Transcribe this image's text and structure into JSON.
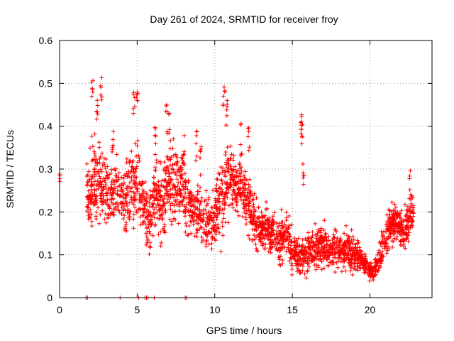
{
  "chart_data": {
    "type": "scatter",
    "title": "Day 261 of 2024, SRMTID for receiver froy",
    "xlabel": "GPS time / hours",
    "ylabel": "SRMTID / TECUs",
    "xlim": [
      0,
      24
    ],
    "ylim": [
      0,
      0.6
    ],
    "xticks": [
      0,
      5,
      10,
      15,
      20
    ],
    "xtick_labels": [
      "0",
      "5",
      "10",
      "15",
      "20"
    ],
    "yticks": [
      0,
      0.1,
      0.2,
      0.3,
      0.4,
      0.5,
      0.6
    ],
    "ytick_labels": [
      "0",
      "0.1",
      "0.2",
      "0.3",
      "0.4",
      "0.5",
      "0.6"
    ],
    "grid": true,
    "marker": "+",
    "color": "#ff0000",
    "series": [
      {
        "name": "SRMTID",
        "envelope_x": [
          0,
          1.8,
          2.2,
          2.6,
          3.0,
          3.4,
          3.8,
          4.2,
          4.6,
          5.0,
          5.4,
          5.8,
          6.2,
          6.6,
          7.0,
          7.4,
          7.8,
          8.2,
          8.6,
          9.0,
          9.4,
          9.8,
          10.2,
          10.6,
          11.0,
          11.4,
          11.8,
          12.2,
          12.6,
          13.0,
          13.4,
          13.8,
          14.2,
          14.6,
          15.0,
          15.4,
          15.8,
          16.2,
          16.6,
          17.0,
          17.4,
          17.8,
          18.2,
          18.6,
          19.0,
          19.4,
          19.8,
          20.2,
          20.6,
          21.0,
          21.4,
          21.8,
          22.2,
          22.6,
          22.8
        ],
        "envelope_mean": [
          0.28,
          0.24,
          0.27,
          0.26,
          0.25,
          0.24,
          0.25,
          0.23,
          0.26,
          0.28,
          0.21,
          0.18,
          0.25,
          0.22,
          0.27,
          0.25,
          0.27,
          0.22,
          0.21,
          0.19,
          0.18,
          0.17,
          0.21,
          0.26,
          0.28,
          0.26,
          0.25,
          0.21,
          0.17,
          0.16,
          0.16,
          0.15,
          0.13,
          0.16,
          0.11,
          0.1,
          0.1,
          0.11,
          0.12,
          0.12,
          0.11,
          0.12,
          0.11,
          0.11,
          0.1,
          0.09,
          0.07,
          0.06,
          0.09,
          0.13,
          0.18,
          0.17,
          0.15,
          0.19,
          0.2
        ],
        "envelope_spread": [
          0.01,
          0.07,
          0.1,
          0.09,
          0.07,
          0.06,
          0.07,
          0.07,
          0.09,
          0.1,
          0.07,
          0.07,
          0.09,
          0.08,
          0.09,
          0.08,
          0.08,
          0.07,
          0.06,
          0.06,
          0.06,
          0.06,
          0.07,
          0.09,
          0.07,
          0.06,
          0.06,
          0.06,
          0.05,
          0.05,
          0.05,
          0.05,
          0.05,
          0.05,
          0.04,
          0.04,
          0.04,
          0.04,
          0.05,
          0.05,
          0.04,
          0.05,
          0.04,
          0.04,
          0.04,
          0.03,
          0.02,
          0.02,
          0.03,
          0.04,
          0.04,
          0.04,
          0.04,
          0.05,
          0.05
        ],
        "peaks": [
          {
            "x": 2.1,
            "y": 0.52
          },
          {
            "x": 2.4,
            "y": 0.47
          },
          {
            "x": 2.7,
            "y": 0.54
          },
          {
            "x": 4.8,
            "y": 0.49
          },
          {
            "x": 5.0,
            "y": 0.5
          },
          {
            "x": 6.9,
            "y": 0.45
          },
          {
            "x": 7.1,
            "y": 0.44
          },
          {
            "x": 8.0,
            "y": 0.38
          },
          {
            "x": 8.8,
            "y": 0.4
          },
          {
            "x": 10.6,
            "y": 0.51
          },
          {
            "x": 10.8,
            "y": 0.48
          },
          {
            "x": 11.7,
            "y": 0.41
          },
          {
            "x": 12.2,
            "y": 0.42
          },
          {
            "x": 15.6,
            "y": 0.44
          },
          {
            "x": 15.6,
            "y": 0.41
          },
          {
            "x": 15.7,
            "y": 0.33
          },
          {
            "x": 22.6,
            "y": 0.31
          },
          {
            "x": 6.2,
            "y": 0.41
          },
          {
            "x": 3.4,
            "y": 0.41
          },
          {
            "x": 9.1,
            "y": 0.36
          }
        ],
        "baseline_points": [
          {
            "x": 1.7,
            "y": 0.0
          },
          {
            "x": 1.8,
            "y": 0.0
          },
          {
            "x": 3.9,
            "y": 0.0
          },
          {
            "x": 5.1,
            "y": 0.0
          },
          {
            "x": 5.5,
            "y": 0.0
          },
          {
            "x": 5.6,
            "y": 0.0
          },
          {
            "x": 5.7,
            "y": 0.0
          },
          {
            "x": 6.1,
            "y": 0.0
          },
          {
            "x": 8.1,
            "y": 0.0
          },
          {
            "x": 8.2,
            "y": 0.0
          }
        ],
        "point_count": 2600
      }
    ]
  }
}
